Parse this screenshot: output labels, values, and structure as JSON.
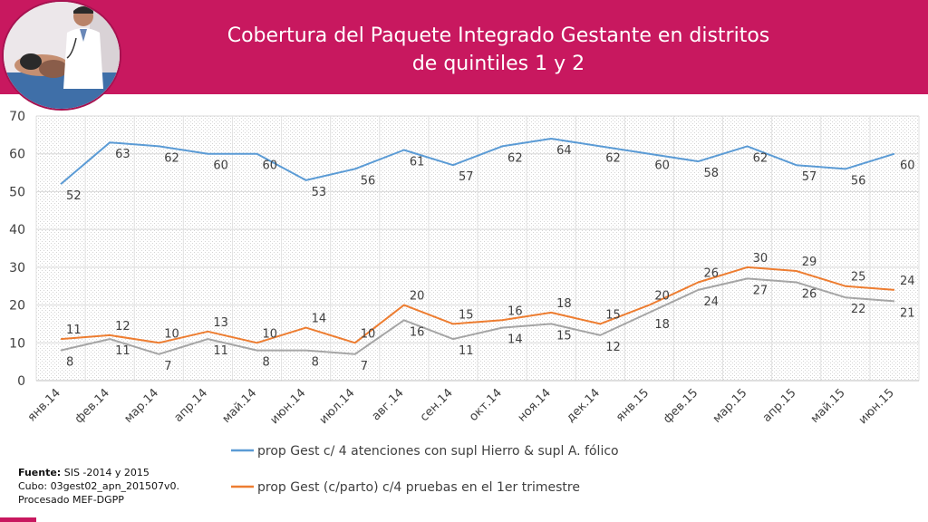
{
  "header": {
    "title_line1": "Cobertura del Paquete Integrado Gestante en distritos",
    "title_line2": "de quintiles 1 y 2"
  },
  "source": {
    "label": "Fuente:",
    "line1": " SIS -2014 y 2015",
    "line2": "Cubo: 03gest02_apn_201507v0.",
    "line3": "Procesado MEF-DGPP"
  },
  "chart_data": {
    "type": "line",
    "title": "",
    "xlabel": "",
    "ylabel": "",
    "ylim": [
      0,
      70
    ],
    "yticks": [
      0,
      10,
      20,
      30,
      40,
      50,
      60,
      70
    ],
    "grid": true,
    "legend_position": "bottom",
    "categories": [
      "янв.14",
      "фев.14",
      "мар.14",
      "апр.14",
      "май.14",
      "июн.14",
      "июл.14",
      "авг.14",
      "сен.14",
      "окт.14",
      "ноя.14",
      "дек.14",
      "янв.15",
      "фев.15",
      "мар.15",
      "апр.15",
      "май.15",
      "июн.15"
    ],
    "series": [
      {
        "name": "prop Gest c/ 4 atenciones con supl Hierro & supl A. fólico",
        "color": "#5b9bd5",
        "values": [
          52,
          63,
          62,
          60,
          60,
          53,
          56,
          61,
          57,
          62,
          64,
          62,
          60,
          58,
          62,
          57,
          56,
          60
        ]
      },
      {
        "name": "prop Gest (c/parto) c/4 pruebas en el 1er trimestre",
        "color": "#ed7d31",
        "values": [
          11,
          12,
          10,
          13,
          10,
          14,
          10,
          20,
          15,
          16,
          18,
          15,
          20,
          26,
          30,
          29,
          25,
          24
        ]
      },
      {
        "name": "",
        "color": "#a5a5a5",
        "values": [
          8,
          11,
          7,
          11,
          8,
          8,
          7,
          16,
          11,
          14,
          15,
          12,
          18,
          24,
          27,
          26,
          22,
          21
        ]
      }
    ]
  }
}
